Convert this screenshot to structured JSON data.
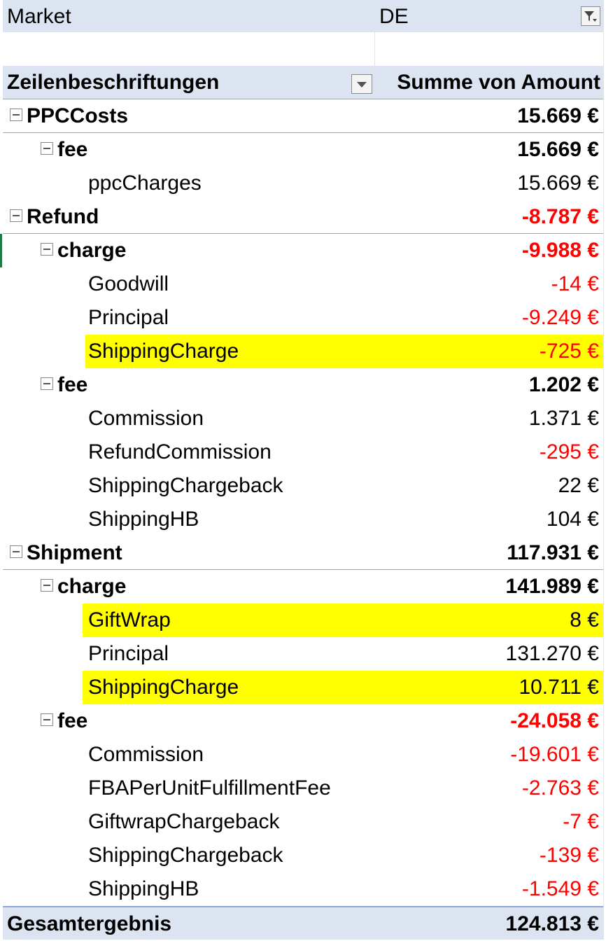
{
  "filter": {
    "field": "Market",
    "value": "DE"
  },
  "pivot_header": {
    "row_labels": "Zeilenbeschriftungen",
    "value_header": "Summe von Amount"
  },
  "rows": [
    {
      "level": 0,
      "label": "PPCCosts",
      "value": "15.669 €",
      "bold": true,
      "negative": false,
      "highlight": false
    },
    {
      "level": 1,
      "label": "fee",
      "value": "15.669 €",
      "bold": true,
      "negative": false,
      "highlight": false
    },
    {
      "level": 2,
      "label": "ppcCharges",
      "value": "15.669 €",
      "bold": false,
      "negative": false,
      "highlight": false
    },
    {
      "level": 0,
      "label": "Refund",
      "value": "-8.787 €",
      "bold": true,
      "negative": true,
      "highlight": false
    },
    {
      "level": 1,
      "label": "charge",
      "value": "-9.988 €",
      "bold": true,
      "negative": true,
      "highlight": false
    },
    {
      "level": 2,
      "label": "Goodwill",
      "value": "-14 €",
      "bold": false,
      "negative": true,
      "highlight": false
    },
    {
      "level": 2,
      "label": "Principal",
      "value": "-9.249 €",
      "bold": false,
      "negative": true,
      "highlight": false
    },
    {
      "level": 2,
      "label": "ShippingCharge",
      "value": "-725 €",
      "bold": false,
      "negative": true,
      "highlight": true
    },
    {
      "level": 1,
      "label": "fee",
      "value": "1.202 €",
      "bold": true,
      "negative": false,
      "highlight": false
    },
    {
      "level": 2,
      "label": "Commission",
      "value": "1.371 €",
      "bold": false,
      "negative": false,
      "highlight": false
    },
    {
      "level": 2,
      "label": "RefundCommission",
      "value": "-295 €",
      "bold": false,
      "negative": true,
      "highlight": false
    },
    {
      "level": 2,
      "label": "ShippingChargeback",
      "value": "22 €",
      "bold": false,
      "negative": false,
      "highlight": false
    },
    {
      "level": 2,
      "label": "ShippingHB",
      "value": "104 €",
      "bold": false,
      "negative": false,
      "highlight": false
    },
    {
      "level": 0,
      "label": "Shipment",
      "value": "117.931 €",
      "bold": true,
      "negative": false,
      "highlight": false
    },
    {
      "level": 1,
      "label": "charge",
      "value": "141.989 €",
      "bold": true,
      "negative": false,
      "highlight": false
    },
    {
      "level": 2,
      "label": "GiftWrap",
      "value": "8 €",
      "bold": false,
      "negative": false,
      "highlight": true
    },
    {
      "level": 2,
      "label": "Principal",
      "value": "131.270 €",
      "bold": false,
      "negative": false,
      "highlight": false
    },
    {
      "level": 2,
      "label": "ShippingCharge",
      "value": "10.711 €",
      "bold": false,
      "negative": false,
      "highlight": true
    },
    {
      "level": 1,
      "label": "fee",
      "value": "-24.058 €",
      "bold": true,
      "negative": true,
      "highlight": false
    },
    {
      "level": 2,
      "label": "Commission",
      "value": "-19.601 €",
      "bold": false,
      "negative": true,
      "highlight": false
    },
    {
      "level": 2,
      "label": "FBAPerUnitFulfillmentFee",
      "value": "-2.763 €",
      "bold": false,
      "negative": true,
      "highlight": false
    },
    {
      "level": 2,
      "label": "GiftwrapChargeback",
      "value": "-7 €",
      "bold": false,
      "negative": true,
      "highlight": false
    },
    {
      "level": 2,
      "label": "ShippingChargeback",
      "value": "-139 €",
      "bold": false,
      "negative": true,
      "highlight": false
    },
    {
      "level": 2,
      "label": "ShippingHB",
      "value": "-1.549 €",
      "bold": false,
      "negative": true,
      "highlight": false
    }
  ],
  "total": {
    "label": "Gesamtergebnis",
    "value": "124.813 €"
  },
  "colors": {
    "header_bg": "#dce4f2",
    "negative": "#ff0000",
    "highlight": "#ffff00",
    "border": "#8ea9db"
  },
  "icons": {
    "filter": "filter-funnel-icon",
    "sort": "dropdown-arrow-icon",
    "collapse": "collapse-minus-icon"
  }
}
